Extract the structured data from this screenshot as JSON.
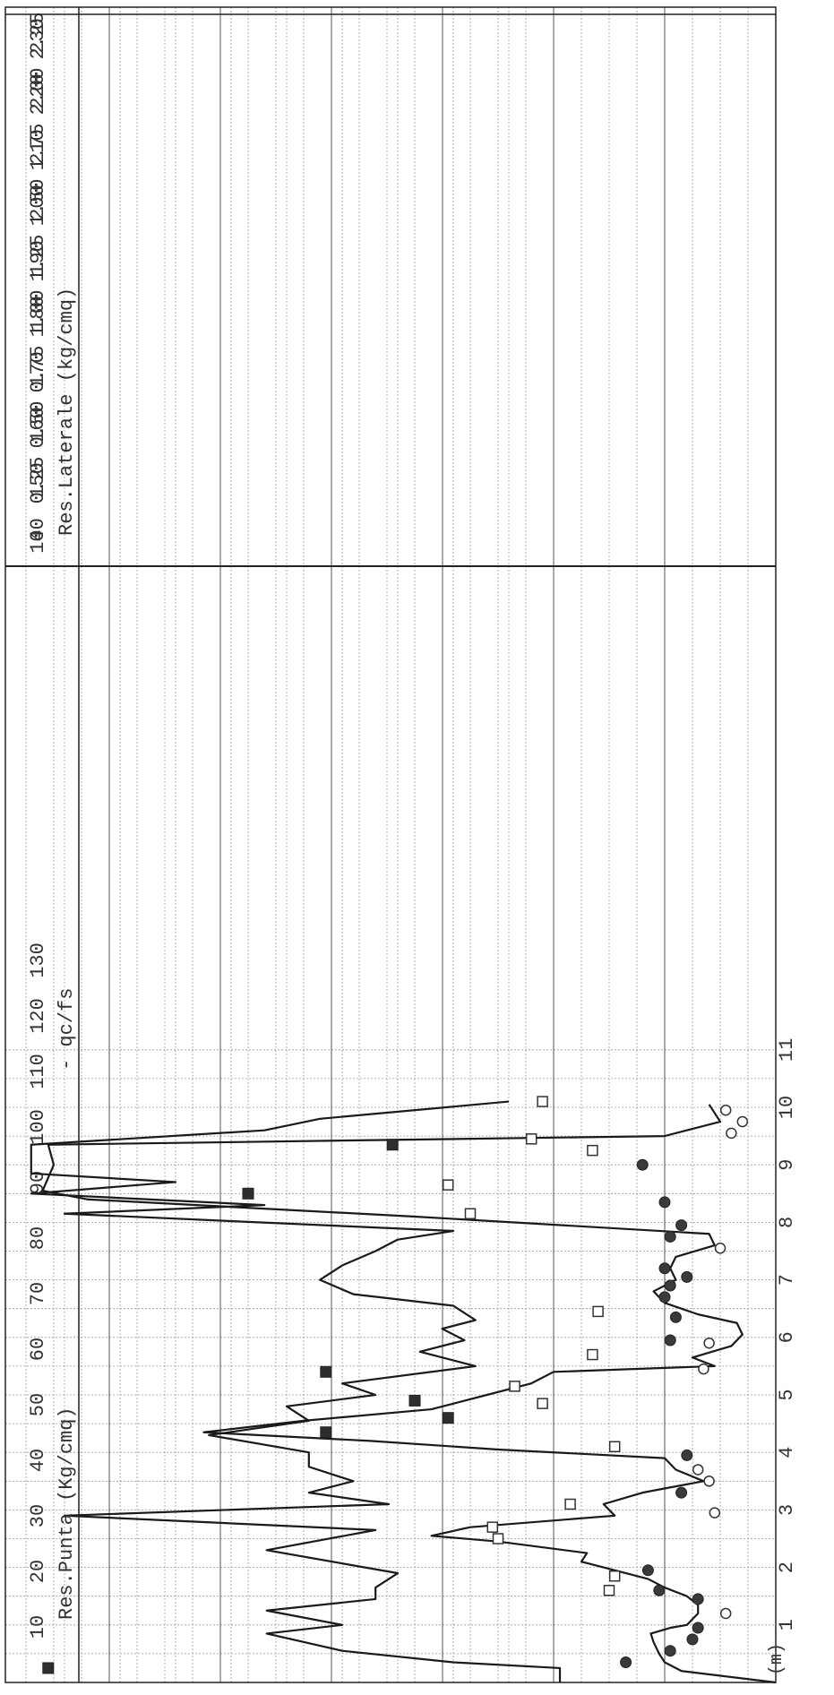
{
  "chart_data": {
    "type": "scatter",
    "orientation": "rotated-90deg (depth runs left to right, values run bottom to top)",
    "depth_axis": {
      "unit_label": "(m)",
      "ticks": [
        "1",
        "2",
        "3",
        "4",
        "5",
        "6",
        "7",
        "8",
        "9",
        "10",
        "11"
      ],
      "range": [
        0,
        11
      ]
    },
    "lower_panel": {
      "ylabel": "Res.Punta (Kg/cmq)",
      "legend_label": "- qc/fs",
      "range": [
        0,
        135
      ],
      "ticks": [
        "10",
        "20",
        "30",
        "40",
        "50",
        "60",
        "70",
        "80",
        "90",
        "100",
        "110",
        "120",
        "130"
      ],
      "series": [
        {
          "name": "Res.Punta",
          "type": "line",
          "points": [
            [
              0.0,
              0
            ],
            [
              0.2,
              17
            ],
            [
              0.35,
              20
            ],
            [
              0.5,
              21
            ],
            [
              0.7,
              22
            ],
            [
              0.85,
              22.5
            ],
            [
              0.95,
              19
            ],
            [
              1.0,
              16
            ],
            [
              1.1,
              15
            ],
            [
              1.2,
              14
            ],
            [
              1.35,
              14
            ],
            [
              1.5,
              16
            ],
            [
              1.65,
              20
            ],
            [
              1.8,
              23
            ],
            [
              2.0,
              31
            ],
            [
              2.1,
              35
            ],
            [
              2.25,
              34
            ],
            [
              2.45,
              50
            ],
            [
              2.55,
              62
            ],
            [
              2.7,
              55
            ],
            [
              2.9,
              29
            ],
            [
              3.1,
              31
            ],
            [
              3.3,
              24
            ],
            [
              3.5,
              13
            ],
            [
              3.7,
              18
            ],
            [
              3.9,
              20
            ],
            [
              4.05,
              50
            ],
            [
              4.2,
              73
            ],
            [
              4.35,
              103
            ],
            [
              4.55,
              85
            ],
            [
              4.75,
              62
            ],
            [
              5.0,
              52
            ],
            [
              5.2,
              44
            ],
            [
              5.4,
              40
            ],
            [
              5.5,
              11
            ],
            [
              5.65,
              15
            ],
            [
              5.85,
              8
            ],
            [
              6.05,
              6
            ],
            [
              6.25,
              7
            ],
            [
              6.4,
              14
            ],
            [
              6.6,
              20
            ],
            [
              6.8,
              22
            ],
            [
              7.0,
              18
            ],
            [
              7.2,
              19
            ],
            [
              7.4,
              18
            ],
            [
              7.6,
              11
            ],
            [
              7.8,
              12
            ],
            [
              8.1,
              65
            ],
            [
              8.4,
              124
            ],
            [
              8.55,
              132
            ],
            [
              9.0,
              130
            ],
            [
              9.35,
              131
            ],
            [
              9.5,
              20
            ],
            [
              9.75,
              10
            ],
            [
              10.05,
              12
            ]
          ]
        },
        {
          "name": "filled circles",
          "type": "scatter",
          "marker": "filled-circle",
          "points": [
            [
              0.35,
              27
            ],
            [
              0.55,
              19
            ],
            [
              0.75,
              15
            ],
            [
              0.95,
              14
            ],
            [
              1.45,
              14
            ],
            [
              1.6,
              21
            ],
            [
              1.95,
              23
            ],
            [
              3.3,
              17
            ],
            [
              3.95,
              16
            ],
            [
              5.95,
              19
            ],
            [
              6.35,
              18
            ],
            [
              6.7,
              20
            ],
            [
              6.9,
              19
            ],
            [
              7.05,
              16
            ],
            [
              7.2,
              20
            ],
            [
              7.75,
              19
            ],
            [
              7.95,
              17
            ],
            [
              8.35,
              20
            ],
            [
              9.0,
              24
            ]
          ]
        },
        {
          "name": "open circles",
          "type": "scatter",
          "marker": "open-circle",
          "points": [
            [
              1.2,
              9
            ],
            [
              2.95,
              11
            ],
            [
              3.5,
              12
            ],
            [
              3.7,
              14
            ],
            [
              5.45,
              13
            ],
            [
              5.9,
              12
            ],
            [
              7.55,
              10
            ],
            [
              9.55,
              8
            ],
            [
              9.75,
              6
            ],
            [
              9.95,
              9
            ]
          ]
        },
        {
          "name": "open squares",
          "type": "scatter",
          "marker": "open-square",
          "points": [
            [
              1.6,
              30
            ],
            [
              1.85,
              29
            ],
            [
              2.5,
              50
            ],
            [
              2.7,
              51
            ],
            [
              3.1,
              37
            ],
            [
              4.1,
              29
            ],
            [
              4.85,
              42
            ],
            [
              5.15,
              47
            ],
            [
              5.7,
              33
            ],
            [
              6.45,
              32
            ],
            [
              8.15,
              55
            ],
            [
              8.65,
              59
            ],
            [
              9.25,
              33
            ],
            [
              9.45,
              44
            ],
            [
              10.1,
              42
            ]
          ]
        },
        {
          "name": "filled squares",
          "type": "scatter",
          "marker": "filled-square",
          "points": [
            [
              0.25,
              131
            ],
            [
              4.35,
              81
            ],
            [
              4.6,
              59
            ],
            [
              4.9,
              65
            ],
            [
              5.4,
              81
            ],
            [
              8.5,
              95
            ],
            [
              9.35,
              69
            ]
          ]
        }
      ]
    },
    "upper_panel": {
      "ylabel": "Res.Laterale (kg/cmq)",
      "tick_rows": [
        [
          "140",
          "150",
          "160",
          "170",
          "180",
          "190",
          "200",
          "210",
          "220",
          "230"
        ],
        [
          "0",
          "0.25",
          "0.50",
          "0.75",
          "1.00",
          "1.25",
          "1.50",
          "1.75",
          "2.00",
          "2.25"
        ]
      ],
      "range": [
        0,
        2.25
      ],
      "series": [
        {
          "name": "Res.Laterale",
          "type": "line",
          "points": [
            [
              0.0,
              0.02
            ],
            [
              0.25,
              0.02
            ],
            [
              0.35,
              0.5
            ],
            [
              0.55,
              1.0
            ],
            [
              0.85,
              1.34
            ],
            [
              1.0,
              1.0
            ],
            [
              1.25,
              1.34
            ],
            [
              1.45,
              0.85
            ],
            [
              1.65,
              0.85
            ],
            [
              1.9,
              0.75
            ],
            [
              2.3,
              1.34
            ],
            [
              2.65,
              0.85
            ],
            [
              2.9,
              2.25
            ],
            [
              3.1,
              0.79
            ],
            [
              3.3,
              1.15
            ],
            [
              3.5,
              0.95
            ],
            [
              3.75,
              1.15
            ],
            [
              4.0,
              1.15
            ],
            [
              4.3,
              1.6
            ],
            [
              4.55,
              1.15
            ],
            [
              4.8,
              1.25
            ],
            [
              5.0,
              0.85
            ],
            [
              5.2,
              1.0
            ],
            [
              5.5,
              0.4
            ],
            [
              5.75,
              0.65
            ],
            [
              5.95,
              0.45
            ],
            [
              6.15,
              0.55
            ],
            [
              6.3,
              0.4
            ],
            [
              6.55,
              0.5
            ],
            [
              6.75,
              0.95
            ],
            [
              7.0,
              1.1
            ],
            [
              7.25,
              1.0
            ],
            [
              7.5,
              0.85
            ],
            [
              7.7,
              0.75
            ],
            [
              7.85,
              0.5
            ],
            [
              8.15,
              2.25
            ],
            [
              8.3,
              1.35
            ],
            [
              8.5,
              2.4
            ],
            [
              8.7,
              1.75
            ],
            [
              8.85,
              2.4
            ],
            [
              9.35,
              2.4
            ],
            [
              9.6,
              1.35
            ],
            [
              9.8,
              1.1
            ],
            [
              10.1,
              0.25
            ]
          ]
        }
      ]
    },
    "grid": true
  }
}
